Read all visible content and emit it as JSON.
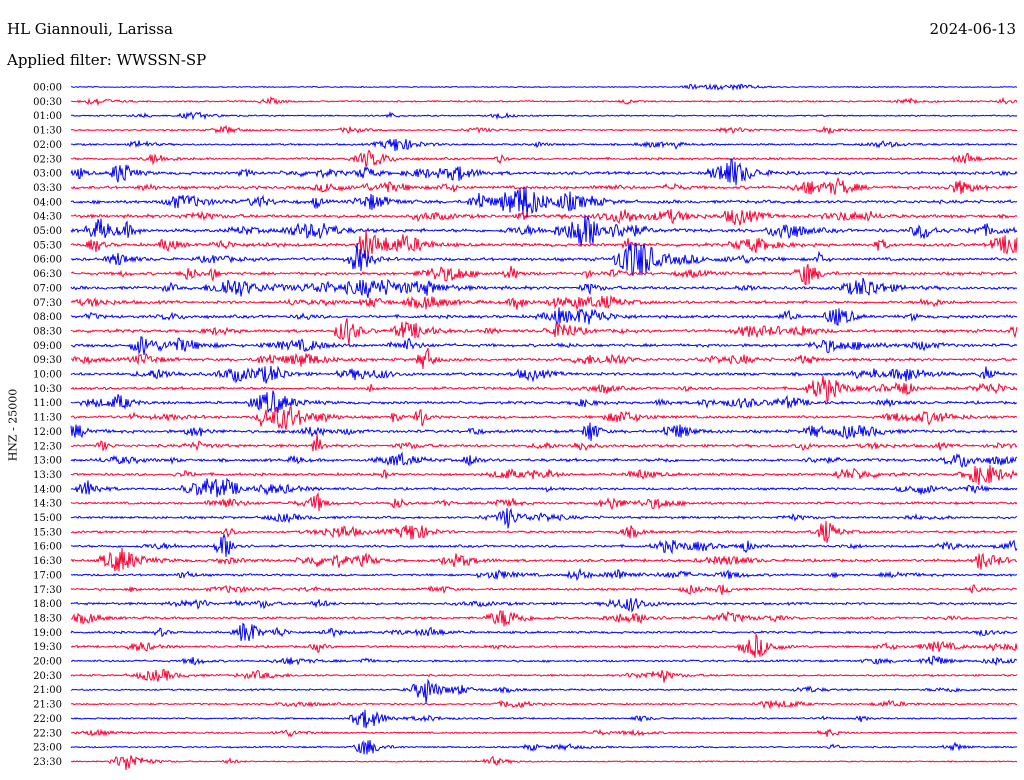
{
  "header": {
    "station": "HL Giannouli, Larissa",
    "date": "2024-06-13",
    "filter": "Applied filter: WWSSN-SP"
  },
  "chart_data": {
    "type": "line",
    "title": "HL Giannouli, Larissa",
    "ylabel": "HNZ - 25000",
    "row_labels": [
      "00:00",
      "00:30",
      "01:00",
      "01:30",
      "02:00",
      "02:30",
      "03:00",
      "03:30",
      "04:00",
      "04:30",
      "05:00",
      "05:30",
      "06:00",
      "06:30",
      "07:00",
      "07:30",
      "08:00",
      "08:30",
      "09:00",
      "09:30",
      "10:00",
      "10:30",
      "11:00",
      "11:30",
      "12:00",
      "12:30",
      "13:00",
      "13:30",
      "14:00",
      "14:30",
      "15:00",
      "15:30",
      "16:00",
      "16:30",
      "17:00",
      "17:30",
      "18:00",
      "18:30",
      "19:00",
      "19:30",
      "20:00",
      "20:30",
      "21:00",
      "21:30",
      "22:00",
      "22:30",
      "23:00",
      "23:30"
    ],
    "series_colors": [
      "#0000ff",
      "#ff0033"
    ],
    "activity_level": [
      0.05,
      0.2,
      0.15,
      0.2,
      0.3,
      0.4,
      0.6,
      0.65,
      0.7,
      0.7,
      0.75,
      0.65,
      0.65,
      0.6,
      0.7,
      0.6,
      0.65,
      0.65,
      0.6,
      0.6,
      0.6,
      0.55,
      0.55,
      0.55,
      0.6,
      0.55,
      0.6,
      0.5,
      0.45,
      0.45,
      0.45,
      0.4,
      0.45,
      0.55,
      0.4,
      0.4,
      0.45,
      0.4,
      0.4,
      0.4,
      0.35,
      0.3,
      0.25,
      0.25,
      0.2,
      0.2,
      0.2,
      0.1
    ],
    "grid": false
  }
}
